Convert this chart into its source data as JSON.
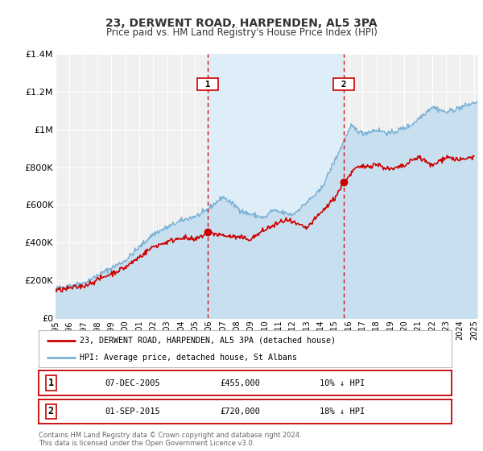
{
  "title": "23, DERWENT ROAD, HARPENDEN, AL5 3PA",
  "subtitle": "Price paid vs. HM Land Registry's House Price Index (HPI)",
  "xlabel": "",
  "ylabel": "",
  "ylim": [
    0,
    1400000
  ],
  "xlim_start": 1995.0,
  "xlim_end": 2025.3,
  "background_color": "#ffffff",
  "plot_bg_color": "#f0f0f0",
  "grid_color": "#ffffff",
  "hpi_color": "#7ab0d4",
  "hpi_fill_color": "#c8dff0",
  "price_color": "#cc0000",
  "span_color": "#ddeef8",
  "marker1_date": 2005.93,
  "marker1_price": 455000,
  "marker2_date": 2015.67,
  "marker2_price": 720000,
  "marker1_label": "07-DEC-2005",
  "marker1_amount": "£455,000",
  "marker1_hpi": "10% ↓ HPI",
  "marker2_label": "01-SEP-2015",
  "marker2_amount": "£720,000",
  "marker2_hpi": "18% ↓ HPI",
  "legend_label1": "23, DERWENT ROAD, HARPENDEN, AL5 3PA (detached house)",
  "legend_label2": "HPI: Average price, detached house, St Albans",
  "footnote1": "Contains HM Land Registry data © Crown copyright and database right 2024.",
  "footnote2": "This data is licensed under the Open Government Licence v3.0.",
  "yticks": [
    0,
    200000,
    400000,
    600000,
    800000,
    1000000,
    1200000,
    1400000
  ],
  "ytick_labels": [
    "£0",
    "£200K",
    "£400K",
    "£600K",
    "£800K",
    "£1M",
    "£1.2M",
    "£1.4M"
  ]
}
